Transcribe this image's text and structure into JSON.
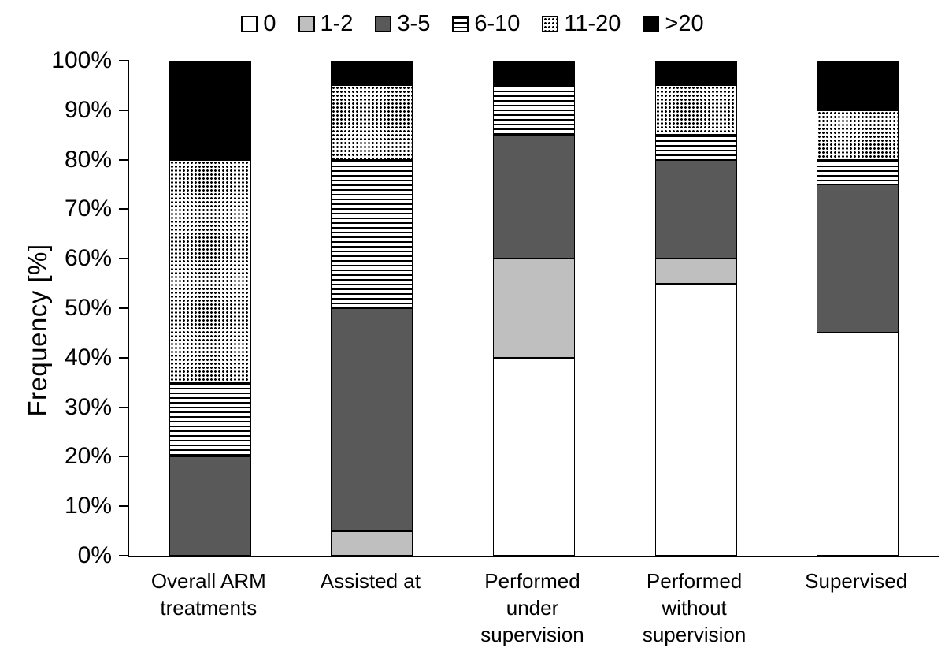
{
  "chart_data": {
    "type": "bar",
    "stacked": true,
    "percent": true,
    "title": "",
    "ylabel": "Frequency [%]",
    "xlabel": "",
    "ylim": [
      0,
      100
    ],
    "ytick_step": 10,
    "ytick_suffix": "%",
    "grid": false,
    "legend_position": "top",
    "categories": [
      "Overall ARM treatments",
      "Assisted at",
      "Performed under supervision",
      "Performed without supervision",
      "Supervised"
    ],
    "series": [
      {
        "name": "0",
        "pattern": "white",
        "values": [
          0,
          0,
          40,
          55,
          45
        ]
      },
      {
        "name": "1-2",
        "pattern": "lightgray",
        "values": [
          0,
          5,
          20,
          5,
          0
        ]
      },
      {
        "name": "3-5",
        "pattern": "darkgray",
        "values": [
          20,
          45,
          25,
          20,
          30
        ]
      },
      {
        "name": "6-10",
        "pattern": "hlines",
        "values": [
          15,
          30,
          10,
          5,
          5
        ]
      },
      {
        "name": "11-20",
        "pattern": "dots",
        "values": [
          45,
          15,
          0,
          10,
          10
        ]
      },
      {
        "name": ">20",
        "pattern": "black",
        "values": [
          20,
          5,
          5,
          5,
          10
        ]
      }
    ],
    "colors": {
      "background": "#ffffff",
      "axis": "#000000",
      "segment_outline": "#000000",
      "light_gray": "#bfbfbf",
      "dark_gray": "#595959"
    }
  }
}
